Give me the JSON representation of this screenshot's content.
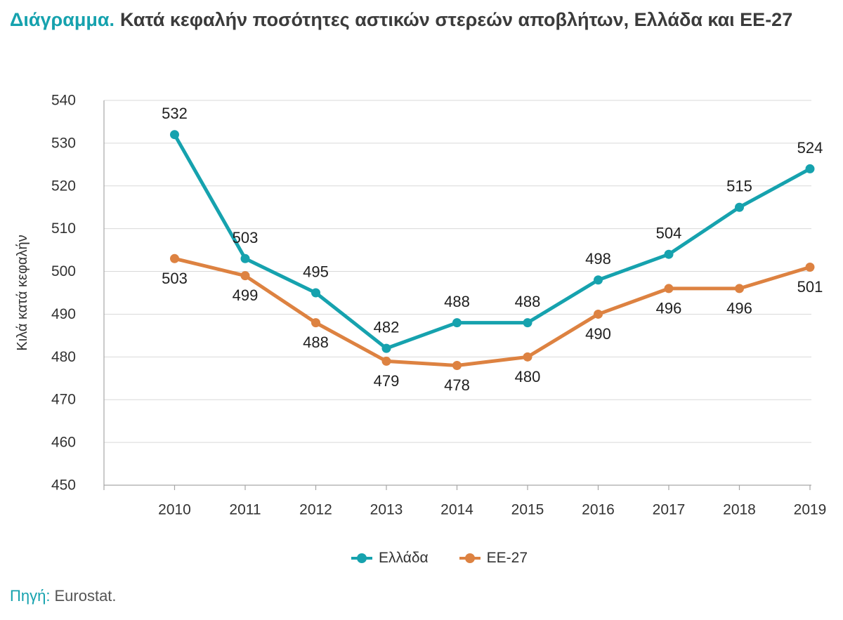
{
  "colors": {
    "accent": "#16a2ae",
    "greece": "#16a2ae",
    "eu27": "#dd8241",
    "grid": "#d9d9d9",
    "axis": "#a6a6a6"
  },
  "source": {
    "label": "Πηγή:",
    "text": "Eurostat."
  },
  "chart_data": {
    "type": "line",
    "title_prefix": "Διάγραμμα.",
    "title": "Κατά κεφαλήν ποσότητες αστικών στερεών αποβλήτων, Ελλάδα και ΕΕ-27",
    "xlabel": "",
    "ylabel": "Κιλά κατά κεφαλήν",
    "ylim": [
      450,
      540
    ],
    "yticks": [
      450,
      460,
      470,
      480,
      490,
      500,
      510,
      520,
      530,
      540
    ],
    "x": [
      "2010",
      "2011",
      "2012",
      "2013",
      "2014",
      "2015",
      "2016",
      "2017",
      "2018",
      "2019"
    ],
    "series": [
      {
        "name": "Ελλάδα",
        "color": "#16a2ae",
        "data_labels": "above",
        "values": [
          532,
          503,
          495,
          482,
          488,
          488,
          498,
          504,
          515,
          524
        ]
      },
      {
        "name": "ΕΕ-27",
        "color": "#dd8241",
        "data_labels": "below",
        "values": [
          503,
          499,
          488,
          479,
          478,
          480,
          490,
          496,
          496,
          501
        ]
      }
    ],
    "grid": "horizontal",
    "legend": "bottom-center"
  }
}
